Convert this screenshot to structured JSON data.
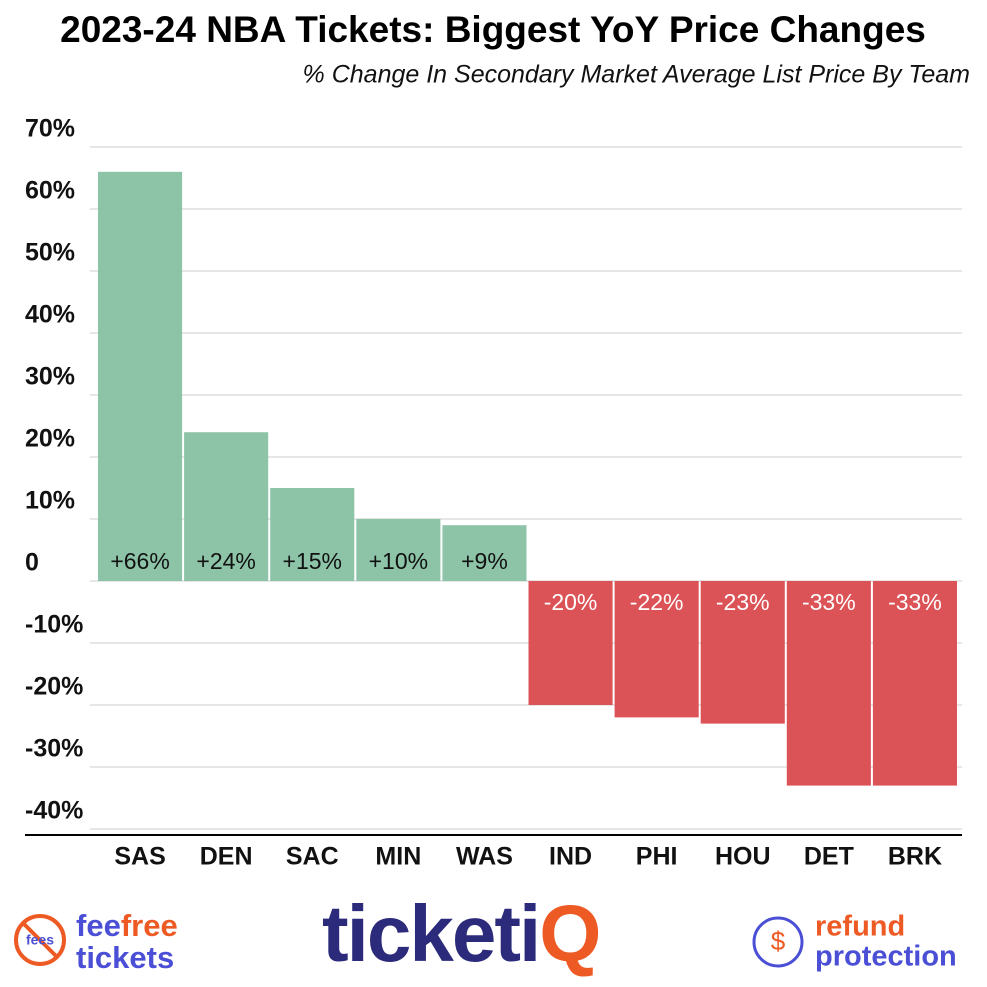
{
  "chart_data": {
    "type": "bar",
    "title": "2023-24 NBA Tickets: Biggest YoY Price Changes",
    "subtitle": "% Change In Secondary Market Average List Price By Team",
    "categories": [
      "SAS",
      "DEN",
      "SAC",
      "MIN",
      "WAS",
      "IND",
      "PHI",
      "HOU",
      "DET",
      "BRK"
    ],
    "values": [
      66,
      24,
      15,
      10,
      9,
      -20,
      -22,
      -23,
      -33,
      -33
    ],
    "value_labels": [
      "+66%",
      "+24%",
      "+15%",
      "+10%",
      "+9%",
      "-20%",
      "-22%",
      "-23%",
      "-33%",
      "-33%"
    ],
    "positive_color": "#8dc4a8",
    "negative_color": "#dc5357",
    "ylim": [
      -40,
      70
    ],
    "yticks": [
      {
        "value": 70,
        "label": "70%"
      },
      {
        "value": 60,
        "label": "60%"
      },
      {
        "value": 50,
        "label": "50%"
      },
      {
        "value": 40,
        "label": "40%"
      },
      {
        "value": 30,
        "label": "30%"
      },
      {
        "value": 20,
        "label": "20%"
      },
      {
        "value": 10,
        "label": "10%"
      },
      0,
      {
        "value": -10,
        "label": "-10%"
      },
      {
        "value": -20,
        "label": "-20%"
      },
      {
        "value": -30,
        "label": "-30%"
      },
      {
        "value": -40,
        "label": "-40%"
      }
    ],
    "grid": true
  },
  "footer": {
    "fees_icon": "fees",
    "feefree_a": "fee",
    "feefree_b": "free",
    "tickets": "tickets",
    "ticketiq_a": "ticketi",
    "ticketiq_b": "Q",
    "dollar": "$",
    "refund": "refund",
    "protection": "protection"
  }
}
